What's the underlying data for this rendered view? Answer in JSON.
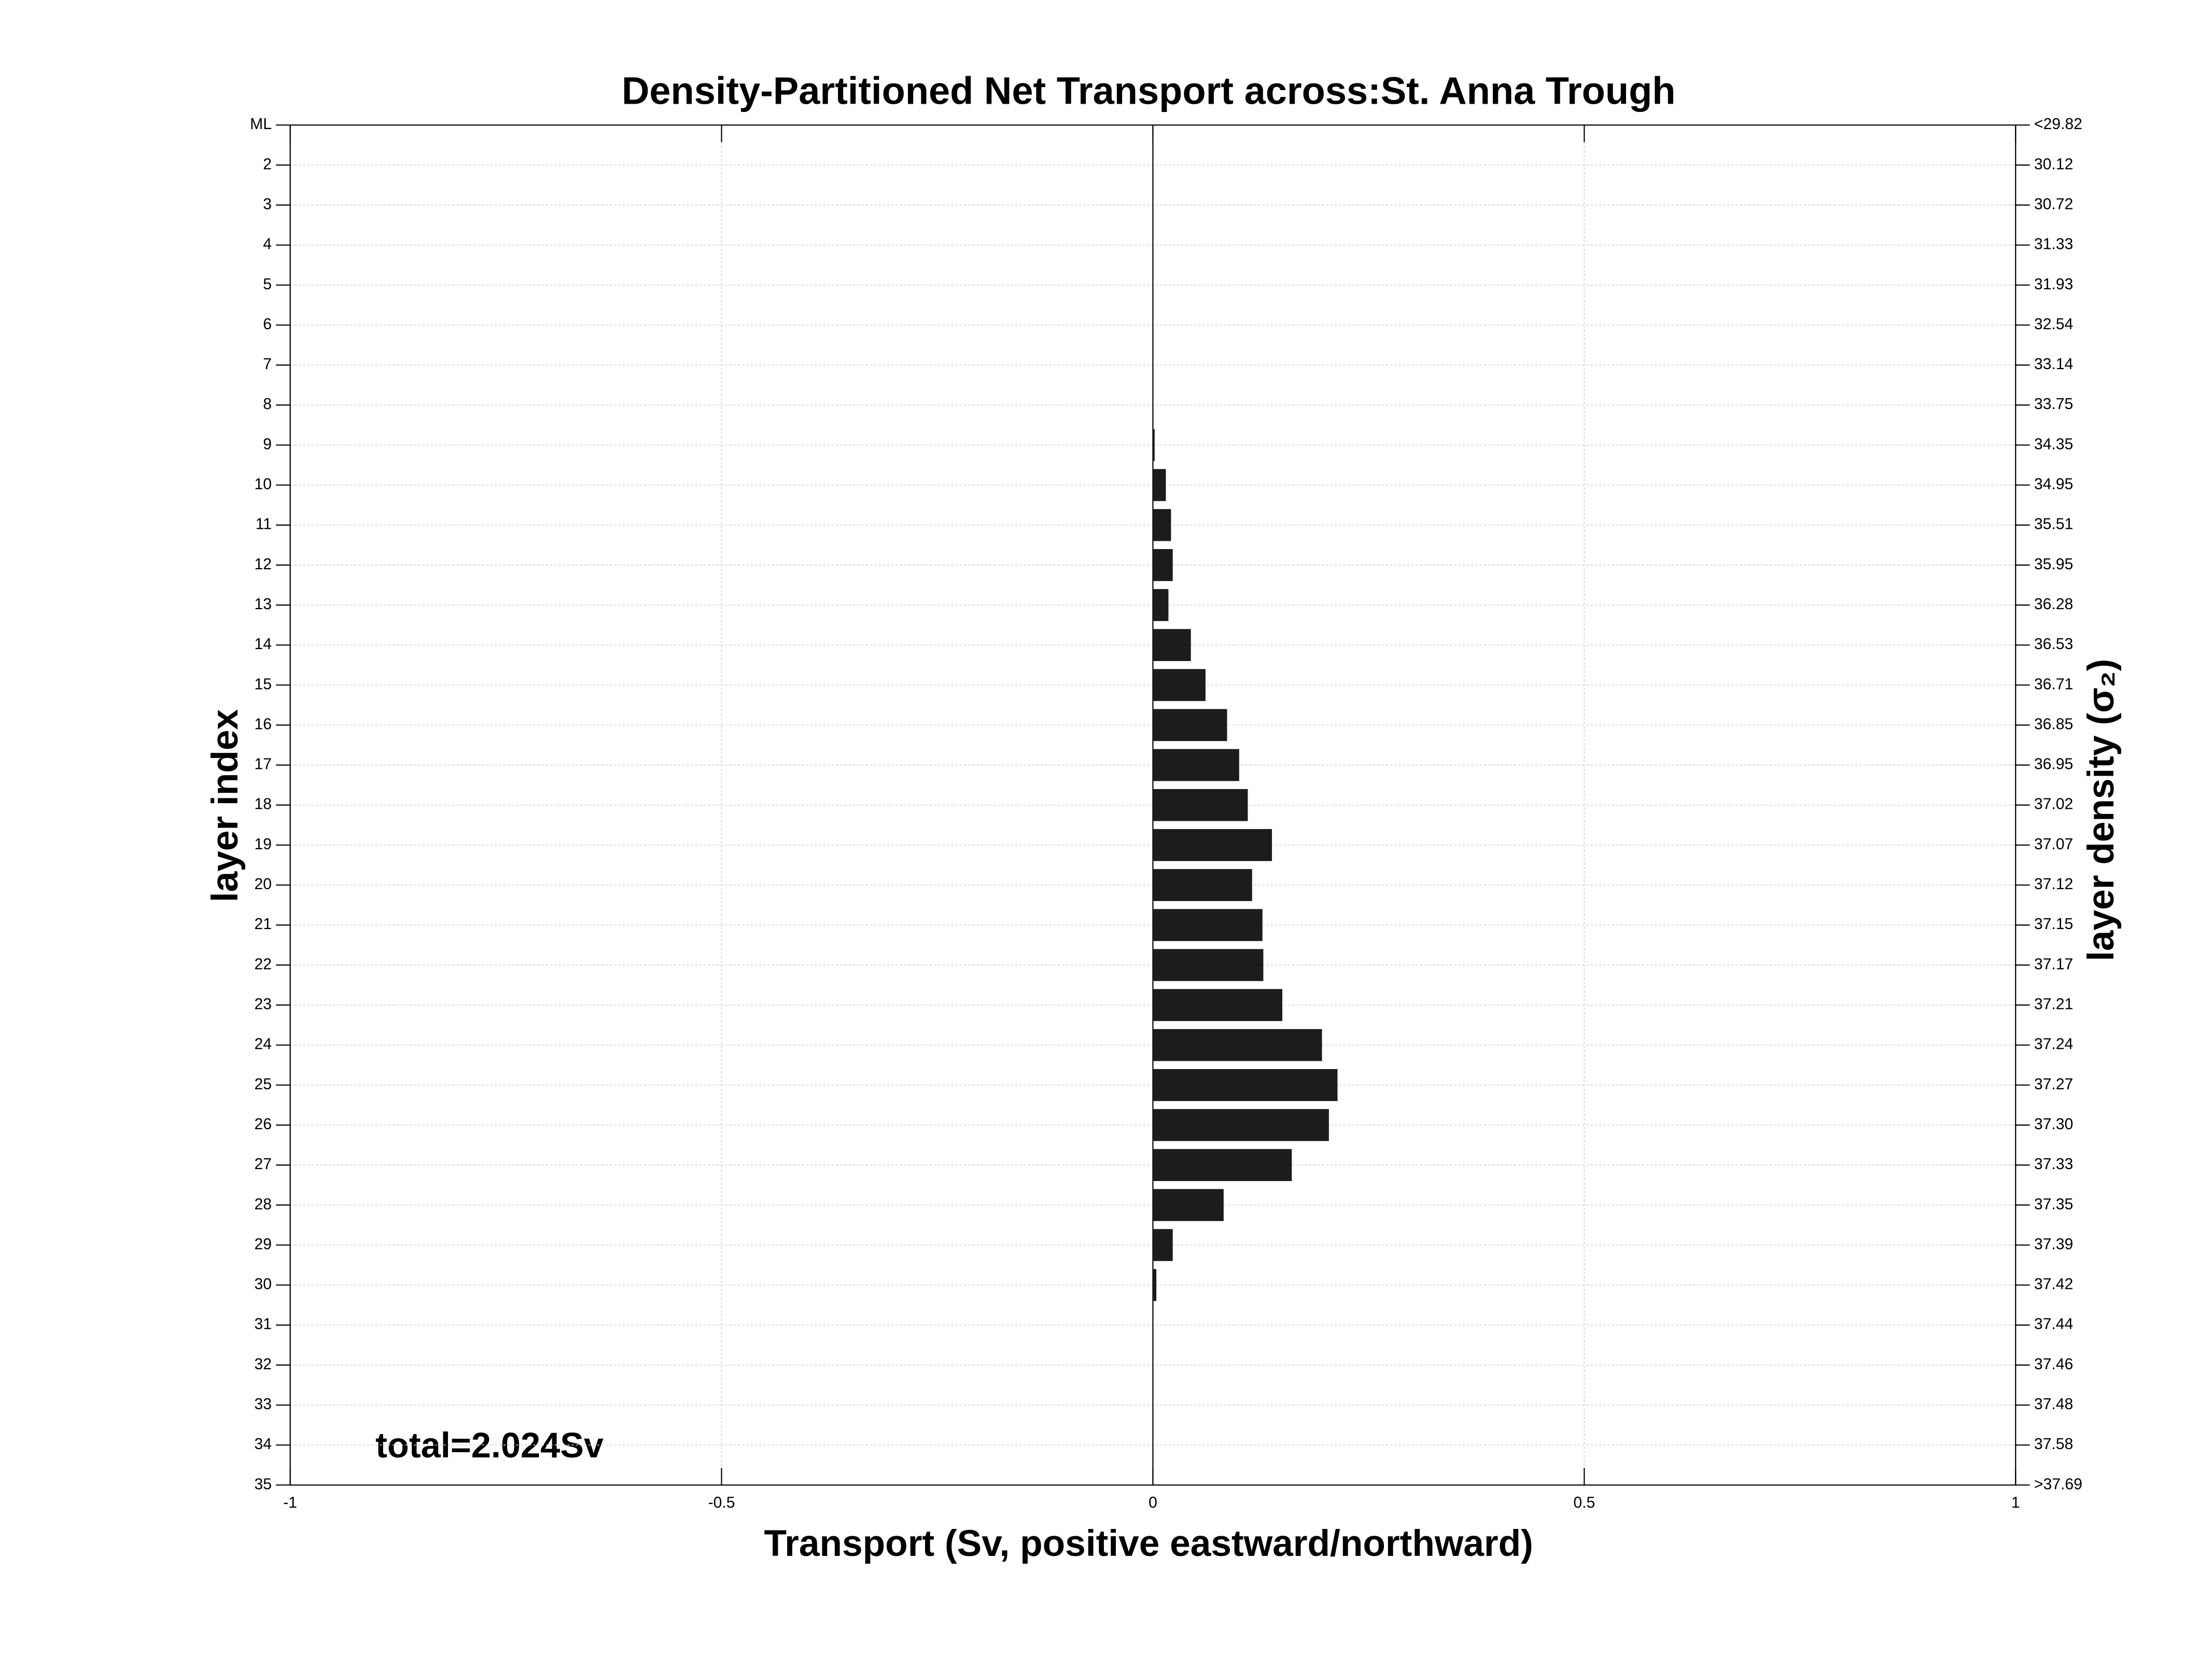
{
  "chart_data": {
    "type": "barh",
    "title": "Density-Partitioned Net Transport across:St. Anna Trough",
    "xlabel": "Transport (Sv, positive eastward/northward)",
    "ylabel": "layer index",
    "y2label": "layer density (σ₂)",
    "annotation": "total=2.024Sv",
    "categories": [
      "ML",
      "2",
      "3",
      "4",
      "5",
      "6",
      "7",
      "8",
      "9",
      "10",
      "11",
      "12",
      "13",
      "14",
      "15",
      "16",
      "17",
      "18",
      "19",
      "20",
      "21",
      "22",
      "23",
      "24",
      "25",
      "26",
      "27",
      "28",
      "29",
      "30",
      "31",
      "32",
      "33",
      "34",
      "35"
    ],
    "y2_categories": [
      "<29.82",
      "30.12",
      "30.72",
      "31.33",
      "31.93",
      "32.54",
      "33.14",
      "33.75",
      "34.35",
      "34.95",
      "35.51",
      "35.95",
      "36.28",
      "36.53",
      "36.71",
      "36.85",
      "36.95",
      "37.02",
      "37.07",
      "37.12",
      "37.15",
      "37.17",
      "37.21",
      "37.24",
      "37.27",
      "37.30",
      "37.33",
      "37.35",
      "37.39",
      "37.42",
      "37.44",
      "37.46",
      "37.48",
      "37.58",
      ">37.69"
    ],
    "values": [
      0,
      0,
      0,
      0,
      0,
      0,
      0,
      0,
      0.002,
      0.015,
      0.021,
      0.023,
      0.018,
      0.044,
      0.061,
      0.086,
      0.1,
      0.11,
      0.138,
      0.115,
      0.127,
      0.128,
      0.15,
      0.196,
      0.214,
      0.204,
      0.161,
      0.082,
      0.023,
      0.004,
      0,
      0,
      0,
      0,
      0
    ],
    "color": "#1c1c1c",
    "xlim": [
      -1,
      1
    ],
    "xticks": [
      -1,
      -0.5,
      0,
      0.5,
      1
    ],
    "grid": true
  }
}
